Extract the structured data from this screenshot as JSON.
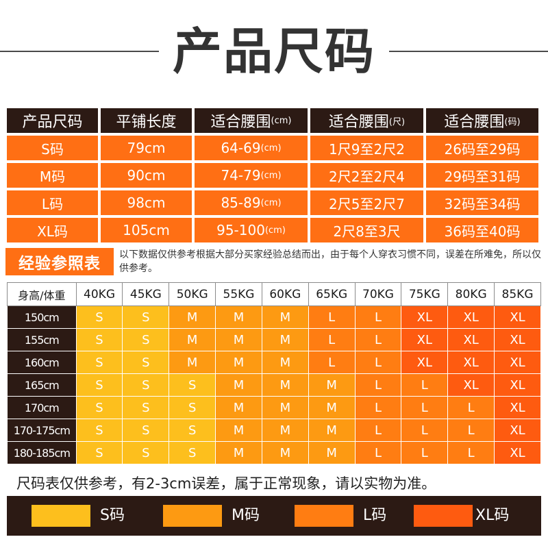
{
  "title": "产品尺码",
  "size_table": {
    "headers": [
      {
        "main": "产品尺码",
        "unit": ""
      },
      {
        "main": "平铺长度",
        "unit": ""
      },
      {
        "main": "适合腰围",
        "unit": "(cm)"
      },
      {
        "main": "适合腰围",
        "unit": "(尺)"
      },
      {
        "main": "适合腰围",
        "unit": "(码)"
      }
    ],
    "rows": [
      {
        "size": "S码",
        "length": "79cm",
        "waist_cm": "64-69",
        "waist_cm_unit": "(cm)",
        "waist_chi": "1尺9至2尺2",
        "waist_ma": "26码至29码"
      },
      {
        "size": "M码",
        "length": "90cm",
        "waist_cm": "74-79",
        "waist_cm_unit": "(cm)",
        "waist_chi": "2尺2至2尺4",
        "waist_ma": "29码至31码"
      },
      {
        "size": "L码",
        "length": "98cm",
        "waist_cm": "85-89",
        "waist_cm_unit": "(cm)",
        "waist_chi": "2尺5至2尺7",
        "waist_ma": "32码至34码"
      },
      {
        "size": "XL码",
        "length": "105cm",
        "waist_cm": "95-100",
        "waist_cm_unit": "(cm)",
        "waist_chi": "2尺8至3尺",
        "waist_ma": "36码至40码"
      }
    ]
  },
  "reference": {
    "badge": "经验参照表",
    "note": "以下数据仅供参考根据大部分买家经验总结而出，由于每个人穿衣习惯不同，误差在所难免，所以仅供参考。",
    "corner": "身高/体重",
    "weights": [
      "40KG",
      "45KG",
      "50KG",
      "55KG",
      "60KG",
      "65KG",
      "70KG",
      "75KG",
      "80KG",
      "85KG"
    ],
    "rows": [
      {
        "height": "150cm",
        "sizes": [
          "S",
          "S",
          "M",
          "M",
          "M",
          "L",
          "L",
          "XL",
          "XL",
          "XL"
        ]
      },
      {
        "height": "155cm",
        "sizes": [
          "S",
          "S",
          "M",
          "M",
          "M",
          "L",
          "L",
          "XL",
          "XL",
          "XL"
        ]
      },
      {
        "height": "160cm",
        "sizes": [
          "S",
          "S",
          "M",
          "M",
          "M",
          "L",
          "L",
          "XL",
          "XL",
          "XL"
        ]
      },
      {
        "height": "165cm",
        "sizes": [
          "S",
          "S",
          "S",
          "M",
          "M",
          "M",
          "L",
          "L",
          "XL",
          "XL"
        ]
      },
      {
        "height": "170cm",
        "sizes": [
          "S",
          "S",
          "S",
          "M",
          "M",
          "M",
          "L",
          "L",
          "L",
          "XL"
        ]
      },
      {
        "height": "170-175cm",
        "sizes": [
          "S",
          "S",
          "S",
          "M",
          "M",
          "M",
          "L",
          "L",
          "L",
          "XL"
        ]
      },
      {
        "height": "180-185cm",
        "sizes": [
          "S",
          "S",
          "S",
          "M",
          "M",
          "M",
          "L",
          "L",
          "L",
          "XL"
        ]
      }
    ]
  },
  "disclaimer": "尺码表仅供参考，有2-3cm误差，属于正常现象，请以实物为准。",
  "legend": [
    {
      "label": "S码",
      "color": "#fdbf1d"
    },
    {
      "label": "M码",
      "color": "#fd9a12"
    },
    {
      "label": "L码",
      "color": "#ff7d12"
    },
    {
      "label": "XL码",
      "color": "#fe5b10"
    }
  ],
  "colors": {
    "dark": "#2c1a14",
    "accent": "#ff6f14",
    "S": "#fdbf1d",
    "M": "#fd9a12",
    "L": "#ff7d12",
    "XL": "#fe5b10"
  }
}
